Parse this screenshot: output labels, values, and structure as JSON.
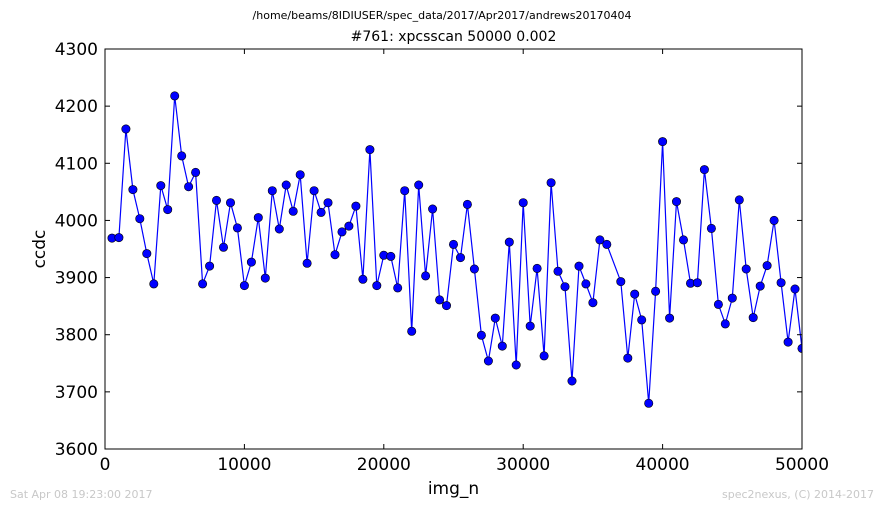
{
  "suptitle": "/home/beams/8IDIUSER/spec_data/2017/Apr2017/andrews20170404",
  "footer": {
    "left": "Sat Apr 08 19:23:00 2017",
    "right": "spec2nexus, (C) 2014-2017"
  },
  "colors": {
    "series": "#0000ff",
    "axes": "#000000",
    "footer": "#c8c8c8"
  },
  "chart_data": {
    "type": "line",
    "title": "#761: xpcsscan 50000 0.002",
    "xlabel": "img_n",
    "ylabel": "ccdc",
    "xlim": [
      0,
      50000
    ],
    "ylim": [
      3600,
      4300
    ],
    "xticks": [
      0,
      10000,
      20000,
      30000,
      40000,
      50000
    ],
    "yticks": [
      3600,
      3700,
      3800,
      3900,
      4000,
      4100,
      4200,
      4300
    ],
    "grid": false,
    "legend": "none",
    "marker": "circle",
    "x": [
      500,
      1000,
      1500,
      2000,
      2500,
      3000,
      3500,
      4000,
      4500,
      5000,
      5500,
      6000,
      6500,
      7000,
      7500,
      8000,
      8500,
      9000,
      9500,
      10000,
      10500,
      11000,
      11500,
      12000,
      12500,
      13000,
      13500,
      14000,
      14500,
      15000,
      15500,
      16000,
      16500,
      17000,
      17500,
      18000,
      18500,
      19000,
      19500,
      20000,
      20500,
      21000,
      21500,
      22000,
      22500,
      23000,
      23500,
      24000,
      24500,
      25000,
      25500,
      26000,
      26500,
      27000,
      27500,
      28000,
      28500,
      29000,
      29500,
      30000,
      30500,
      31000,
      31500,
      32000,
      32500,
      33000,
      33500,
      34000,
      34500,
      35000,
      35500,
      36000,
      37000,
      37500,
      38000,
      38500,
      39000,
      39500,
      40000,
      40500,
      41000,
      41500,
      42000,
      42500,
      43000,
      43500,
      44000,
      44500,
      45000,
      45500,
      46000,
      46500,
      47000,
      47500,
      48000,
      48500,
      49000,
      49500,
      50000
    ],
    "y": [
      3969,
      3970,
      4160,
      4054,
      4003,
      3942,
      3889,
      4061,
      4019,
      4218,
      4113,
      4059,
      4084,
      3889,
      3920,
      4035,
      3953,
      4031,
      3987,
      3886,
      3927,
      4005,
      3899,
      4052,
      3985,
      4062,
      4016,
      4080,
      3925,
      4052,
      4014,
      4031,
      3940,
      3980,
      3990,
      4025,
      3897,
      4124,
      3886,
      3939,
      3937,
      3882,
      4052,
      3806,
      4062,
      3903,
      4020,
      3861,
      3851,
      3958,
      3935,
      4028,
      3915,
      3799,
      3754,
      3829,
      3780,
      3962,
      3747,
      4031,
      3815,
      3916,
      3763,
      4066,
      3911,
      3884,
      3719,
      3920,
      3889,
      3856,
      3966,
      3958,
      3893,
      3759,
      3871,
      3826,
      3680,
      3876,
      4138,
      3829,
      4033,
      3966,
      3890,
      3891,
      4089,
      3986,
      3853,
      3819,
      3864,
      4036,
      3915,
      3830,
      3885,
      3921,
      4000,
      3891,
      3787,
      3880,
      3776
    ]
  }
}
